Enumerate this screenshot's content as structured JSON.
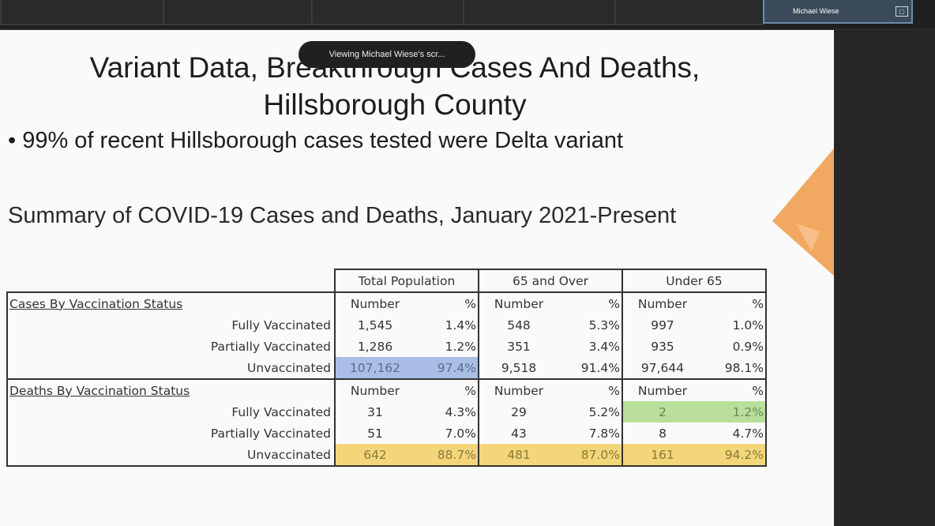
{
  "participant": {
    "name": "Michael Wiese"
  },
  "tooltip": "Viewing Michael Wiese's scr...",
  "slide": {
    "title_line1": "Variant Data, Breakthrough Cases And Deaths,",
    "title_line2": "Hillsborough County",
    "bullet": "• 99% of recent Hillsborough cases tested were Delta variant",
    "subtitle": "Summary of COVID-19 Cases and Deaths, January 2021-Present"
  },
  "table": {
    "groups": [
      "Total Population",
      "65 and Over",
      "Under 65"
    ],
    "col_number": "Number",
    "col_pct": "%",
    "cases_heading": "Cases By Vaccination Status",
    "deaths_heading": "Deaths By Vaccination Status",
    "cases": [
      {
        "label": "Fully Vaccinated",
        "tn": "1,545",
        "tp": "1.4%",
        "on": "548",
        "op": "5.3%",
        "un": "997",
        "up": "1.0%"
      },
      {
        "label": "Partially Vaccinated",
        "tn": "1,286",
        "tp": "1.2%",
        "on": "351",
        "op": "3.4%",
        "un": "935",
        "up": "0.9%"
      },
      {
        "label": "Unvaccinated",
        "tn": "107,162",
        "tp": "97.4%",
        "on": "9,518",
        "op": "91.4%",
        "un": "97,644",
        "up": "98.1%"
      }
    ],
    "deaths": [
      {
        "label": "Fully Vaccinated",
        "tn": "31",
        "tp": "4.3%",
        "on": "29",
        "op": "5.2%",
        "un": "2",
        "up": "1.2%"
      },
      {
        "label": "Partially Vaccinated",
        "tn": "51",
        "tp": "7.0%",
        "on": "43",
        "op": "7.8%",
        "un": "8",
        "up": "4.7%"
      },
      {
        "label": "Unvaccinated",
        "tn": "642",
        "tp": "88.7%",
        "on": "481",
        "op": "87.0%",
        "un": "161",
        "up": "94.2%"
      }
    ]
  },
  "colors": {
    "highlight_blue": "#a9bde6",
    "highlight_yellow": "#f2d679",
    "highlight_green": "#b9df9a",
    "accent_orange": "#f0a050"
  }
}
